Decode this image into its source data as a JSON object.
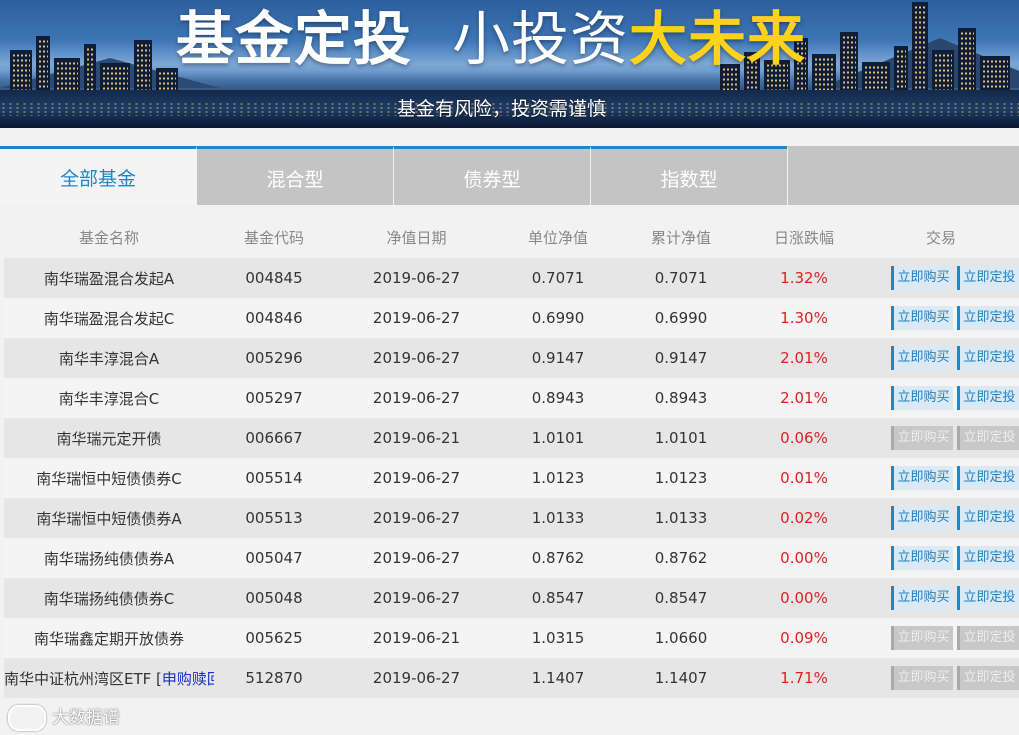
{
  "banner": {
    "title_part1": "基金定投",
    "title_part2": "小投资",
    "title_part3": "大未来",
    "subtitle": "基金有风险，投资需谨慎"
  },
  "tabs": [
    {
      "label": "全部基金",
      "active": true
    },
    {
      "label": "混合型",
      "active": false
    },
    {
      "label": "债券型",
      "active": false
    },
    {
      "label": "指数型",
      "active": false
    }
  ],
  "table": {
    "headers": {
      "name": "基金名称",
      "code": "基金代码",
      "date": "净值日期",
      "nav": "单位净值",
      "acc_nav": "累计净值",
      "change": "日涨跌幅",
      "trade": "交易"
    },
    "buy_label": "立即购买",
    "plan_label": "立即定投",
    "rows": [
      {
        "name": "南华瑞盈混合发起A",
        "code": "004845",
        "date": "2019-06-27",
        "nav": "0.7071",
        "acc_nav": "0.7071",
        "change": "1.32%",
        "enabled": true
      },
      {
        "name": "南华瑞盈混合发起C",
        "code": "004846",
        "date": "2019-06-27",
        "nav": "0.6990",
        "acc_nav": "0.6990",
        "change": "1.30%",
        "enabled": true
      },
      {
        "name": "南华丰淳混合A",
        "code": "005296",
        "date": "2019-06-27",
        "nav": "0.9147",
        "acc_nav": "0.9147",
        "change": "2.01%",
        "enabled": true
      },
      {
        "name": "南华丰淳混合C",
        "code": "005297",
        "date": "2019-06-27",
        "nav": "0.8943",
        "acc_nav": "0.8943",
        "change": "2.01%",
        "enabled": true
      },
      {
        "name": "南华瑞元定开债",
        "code": "006667",
        "date": "2019-06-21",
        "nav": "1.0101",
        "acc_nav": "1.0101",
        "change": "0.06%",
        "enabled": false
      },
      {
        "name": "南华瑞恒中短债债券C",
        "code": "005514",
        "date": "2019-06-27",
        "nav": "1.0123",
        "acc_nav": "1.0123",
        "change": "0.01%",
        "enabled": true
      },
      {
        "name": "南华瑞恒中短债债券A",
        "code": "005513",
        "date": "2019-06-27",
        "nav": "1.0133",
        "acc_nav": "1.0133",
        "change": "0.02%",
        "enabled": true
      },
      {
        "name": "南华瑞扬纯债债券A",
        "code": "005047",
        "date": "2019-06-27",
        "nav": "0.8762",
        "acc_nav": "0.8762",
        "change": "0.00%",
        "enabled": true
      },
      {
        "name": "南华瑞扬纯债债券C",
        "code": "005048",
        "date": "2019-06-27",
        "nav": "0.8547",
        "acc_nav": "0.8547",
        "change": "0.00%",
        "enabled": true
      },
      {
        "name": "南华瑞鑫定期开放债券",
        "code": "005625",
        "date": "2019-06-21",
        "nav": "1.0315",
        "acc_nav": "1.0660",
        "change": "0.09%",
        "enabled": false
      },
      {
        "name": "南华中证杭州湾区ETF [",
        "name_link": "申购赎回",
        "code": "512870",
        "date": "2019-06-27",
        "nav": "1.1407",
        "acc_nav": "1.1407",
        "change": "1.71%",
        "enabled": false
      }
    ]
  },
  "watermark": "大数据谱",
  "colors": {
    "accent": "#1f86c8",
    "tab_inactive": "#c4c4c4",
    "change_red": "#e02020",
    "title_yellow": "#ffd21a",
    "link_blue": "#1a2fc2"
  }
}
